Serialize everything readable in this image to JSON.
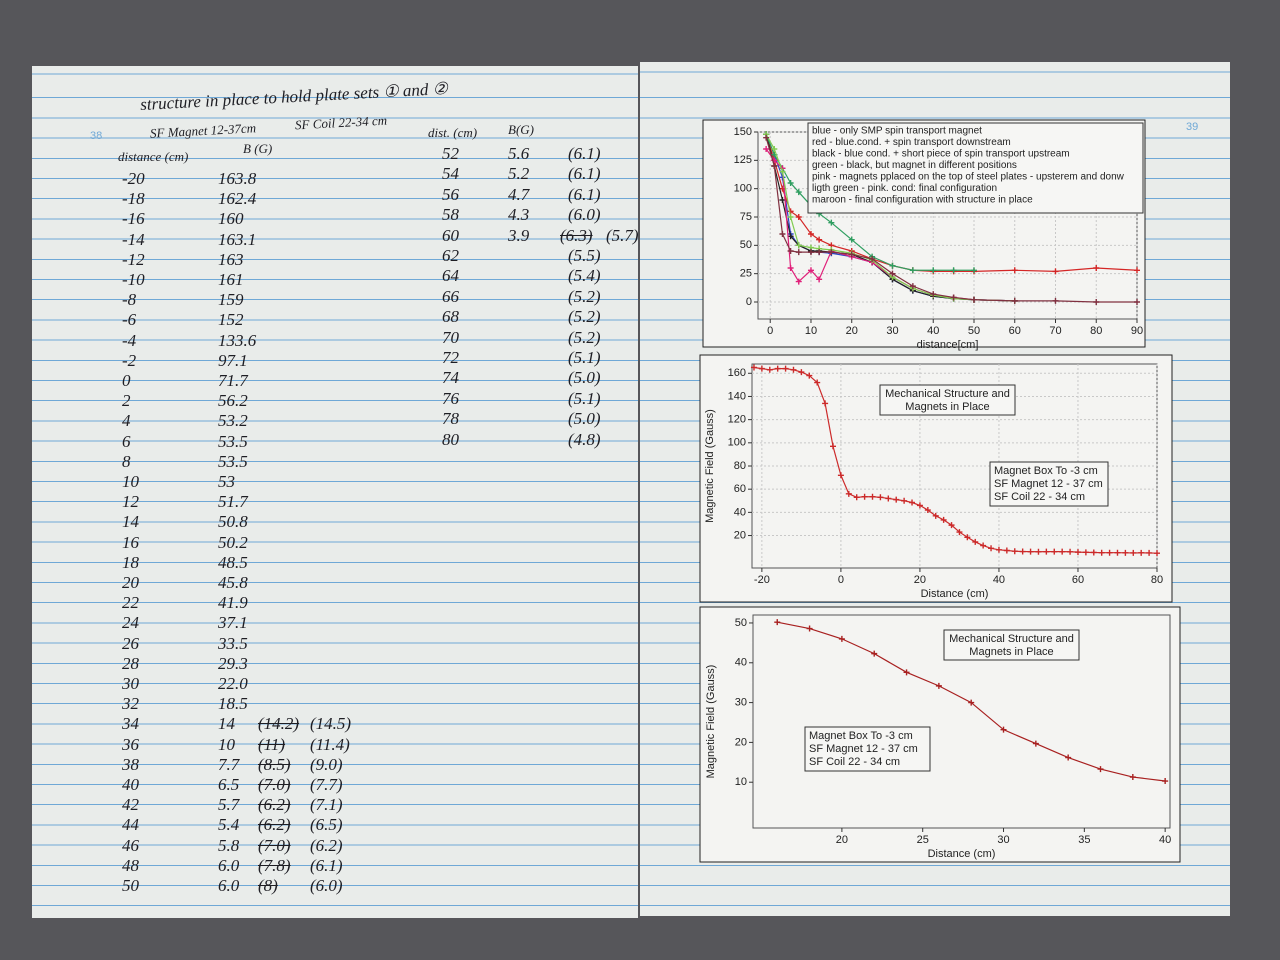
{
  "left_page": {
    "page_number": "38",
    "title": "structure in place to hold plate sets ① and ②",
    "magnet_note": "SF Magnet 12-37cm",
    "coil_note": "SF Coil 22-34 cm",
    "headers": [
      "distance (cm)",
      "B (G)"
    ],
    "rows": [
      {
        "d": "-20",
        "b": "163.8"
      },
      {
        "d": "-18",
        "b": "162.4"
      },
      {
        "d": "-16",
        "b": "160"
      },
      {
        "d": "-14",
        "b": "163.1"
      },
      {
        "d": "-12",
        "b": "163"
      },
      {
        "d": "-10",
        "b": "161"
      },
      {
        "d": "-8",
        "b": "159"
      },
      {
        "d": "-6",
        "b": "152"
      },
      {
        "d": "-4",
        "b": "133.6"
      },
      {
        "d": "-2",
        "b": "97.1"
      },
      {
        "d": "0",
        "b": "71.7"
      },
      {
        "d": "2",
        "b": "56.2"
      },
      {
        "d": "4",
        "b": "53.2"
      },
      {
        "d": "6",
        "b": "53.5"
      },
      {
        "d": "8",
        "b": "53.5"
      },
      {
        "d": "10",
        "b": "53"
      },
      {
        "d": "12",
        "b": "51.7"
      },
      {
        "d": "14",
        "b": "50.8"
      },
      {
        "d": "16",
        "b": "50.2"
      },
      {
        "d": "18",
        "b": "48.5"
      },
      {
        "d": "20",
        "b": "45.8"
      },
      {
        "d": "22",
        "b": "41.9"
      },
      {
        "d": "24",
        "b": "37.1"
      },
      {
        "d": "26",
        "b": "33.5"
      },
      {
        "d": "28",
        "b": "29.3"
      },
      {
        "d": "30",
        "b": "22.0"
      },
      {
        "d": "32",
        "b": "18.5"
      },
      {
        "d": "34",
        "b": "14",
        "old": "(14.2)",
        "new": "(14.5)"
      },
      {
        "d": "36",
        "b": "10",
        "old": "(11)",
        "new": "(11.4)"
      },
      {
        "d": "38",
        "b": "7.7",
        "old": "(8.5)",
        "new": "(9.0)"
      },
      {
        "d": "40",
        "b": "6.5",
        "old": "(7.0)",
        "new": "(7.7)"
      },
      {
        "d": "42",
        "b": "5.7",
        "old": "(6.2)",
        "new": "(7.1)"
      },
      {
        "d": "44",
        "b": "5.4",
        "old": "(6.2)",
        "new": "(6.5)"
      },
      {
        "d": "46",
        "b": "5.8",
        "old": "(7.0)",
        "new": "(6.2)"
      },
      {
        "d": "48",
        "b": "6.0",
        "old": "(7.8)",
        "new": "(6.1)"
      },
      {
        "d": "50",
        "b": "6.0",
        "old": "(8)",
        "new": "(6.0)"
      }
    ],
    "headers2": [
      "dist. (cm)",
      "B(G)"
    ],
    "rows2": [
      {
        "d": "52",
        "b": "5.6",
        "new": "(6.1)"
      },
      {
        "d": "54",
        "b": "5.2",
        "new": "(6.1)"
      },
      {
        "d": "56",
        "b": "4.7",
        "new": "(6.1)"
      },
      {
        "d": "58",
        "b": "4.3",
        "new": "(6.0)"
      },
      {
        "d": "60",
        "b": "3.9",
        "old": "(6.3)",
        "new": "(5.7)"
      },
      {
        "d": "62",
        "new": "(5.5)"
      },
      {
        "d": "64",
        "new": "(5.4)"
      },
      {
        "d": "66",
        "new": "(5.2)"
      },
      {
        "d": "68",
        "new": "(5.2)"
      },
      {
        "d": "70",
        "new": "(5.2)"
      },
      {
        "d": "72",
        "new": "(5.1)"
      },
      {
        "d": "74",
        "new": "(5.0)"
      },
      {
        "d": "76",
        "new": "(5.1)"
      },
      {
        "d": "78",
        "new": "(5.0)"
      },
      {
        "d": "80",
        "new": "(4.8)"
      }
    ]
  },
  "right_page": {
    "page_number": "39",
    "charts": [
      {
        "type": "line",
        "x_label": "distance[cm]",
        "xlim": [
          -3,
          90
        ],
        "ylim": [
          -15,
          150
        ],
        "xticks": [
          0,
          10,
          20,
          30,
          40,
          50,
          60,
          70,
          80,
          90
        ],
        "yticks": [
          0,
          25,
          50,
          75,
          100,
          125,
          150
        ],
        "grid": true,
        "x": [
          -1,
          1,
          3,
          5,
          7,
          10,
          12,
          15,
          20,
          25,
          30,
          35,
          40,
          45,
          50,
          60,
          70,
          80,
          90
        ],
        "series": [
          {
            "name": "blue - only SMP spin transport magnet",
            "color": "#2a44c8",
            "values": [
              148,
              130,
              110,
              60,
              50,
              45,
              44,
              43,
              40,
              35,
              20,
              10,
              5,
              3,
              2,
              1,
              null,
              null,
              null
            ]
          },
          {
            "name": "red - blue.cond. + spin transport downstream",
            "color": "#d42626",
            "values": [
              148,
              125,
              100,
              80,
              75,
              60,
              55,
              50,
              45,
              38,
              32,
              28,
              27,
              27,
              27,
              28,
              27,
              30,
              28
            ]
          },
          {
            "name": "black - blue cond. +  short piece of spin transport upstream",
            "color": "#222222",
            "values": [
              148,
              120,
              90,
              58,
              50,
              45,
              45,
              44,
              42,
              35,
              20,
              10,
              5,
              3,
              2,
              1,
              null,
              null,
              null
            ]
          },
          {
            "name": "green - black, but magnet in different positions",
            "color": "#2f9e60",
            "values": [
              148,
              130,
              118,
              105,
              97,
              85,
              78,
              70,
              55,
              40,
              32,
              28,
              28,
              28,
              28,
              null,
              null,
              null,
              null
            ]
          },
          {
            "name": "pink - magnets pplaced on the top of steel plates - upsterem and donw",
            "color": "#e0207a",
            "values": [
              135,
              125,
              118,
              30,
              18,
              28,
              20,
              45,
              40,
              35,
              22,
              12,
              6,
              4,
              2,
              1,
              null,
              null,
              null
            ]
          },
          {
            "name": "ligth green - pink. cond: final configuration",
            "color": "#80cc50",
            "values": [
              148,
              135,
              115,
              75,
              50,
              48,
              47,
              46,
              43,
              37,
              22,
              12,
              6,
              3,
              2,
              1,
              null,
              null,
              null
            ]
          },
          {
            "name": "maroon - final configuration with structure in place",
            "color": "#803040",
            "values": [
              145,
              120,
              60,
              45,
              44,
              44,
              44,
              44,
              42,
              38,
              25,
              14,
              7,
              4,
              2,
              1,
              1,
              0,
              0
            ]
          }
        ]
      },
      {
        "type": "line",
        "y_label": "Magnetic Field (Gauss)",
        "x_label": "Distance (cm)",
        "xlim": [
          -22.5,
          80
        ],
        "ylim": [
          -8,
          168
        ],
        "xticks": [
          -20,
          0,
          20,
          40,
          60,
          80
        ],
        "yticks": [
          20,
          40,
          60,
          80,
          100,
          120,
          140,
          160
        ],
        "grid": true,
        "annotations": [
          [
            "Mechanical Structure and",
            "Magnets in Place"
          ],
          [
            "Magnet Box To -3 cm",
            "SF Magnet 12 - 37 cm",
            "SF Coil 22 - 34 cm"
          ]
        ],
        "x": [
          -22,
          -20,
          -18,
          -16,
          -14,
          -12,
          -10,
          -8,
          -6,
          -4,
          -2,
          0,
          2,
          4,
          6,
          8,
          10,
          12,
          14,
          16,
          18,
          20,
          22,
          24,
          26,
          28,
          30,
          32,
          34,
          36,
          38,
          40,
          42,
          44,
          46,
          48,
          50,
          52,
          54,
          56,
          58,
          60,
          62,
          64,
          66,
          68,
          70,
          72,
          74,
          76,
          78,
          80
        ],
        "series": [
          {
            "name": "B",
            "color": "#cc2a2a",
            "values": [
              165,
              164,
              163,
              164,
              164,
              163,
              161,
              158,
              152,
              134,
              97,
              72,
              56,
              53,
              53.5,
              53.5,
              53,
              52,
              51,
              50,
              48.5,
              46,
              42,
              37,
              33.5,
              29,
              23,
              18.5,
              14.5,
              11.4,
              9,
              7.7,
              7.1,
              6.5,
              6.2,
              6.1,
              6,
              6.1,
              6.1,
              6.1,
              6,
              5.7,
              5.5,
              5.4,
              5.2,
              5.2,
              5.2,
              5.1,
              5,
              5.1,
              5,
              4.8
            ]
          }
        ]
      },
      {
        "type": "line",
        "y_label": "Magnetic Field (Gauss)",
        "x_label": "Distance (cm)",
        "xlim": [
          14.5,
          40.3
        ],
        "ylim": [
          -1.5,
          52
        ],
        "xticks": [
          20,
          25,
          30,
          35,
          40
        ],
        "yticks": [
          10,
          20,
          30,
          40,
          50
        ],
        "grid": false,
        "annotations": [
          [
            "Mechanical Structure and",
            "Magnets in Place"
          ],
          [
            "Magnet Box To -3 cm",
            "SF Magnet 12 - 37 cm",
            "SF Coil 22 - 34 cm"
          ]
        ],
        "x": [
          16,
          18,
          20,
          22,
          24,
          26,
          28,
          30,
          32,
          34,
          36,
          38,
          40
        ],
        "series": [
          {
            "name": "B",
            "color": "#a82020",
            "values": [
              50.2,
              48.6,
              46,
              42.3,
              37.6,
              34.2,
              30,
              23.2,
              19.7,
              16.2,
              13.3,
              11.3,
              10.3
            ]
          }
        ]
      }
    ]
  }
}
